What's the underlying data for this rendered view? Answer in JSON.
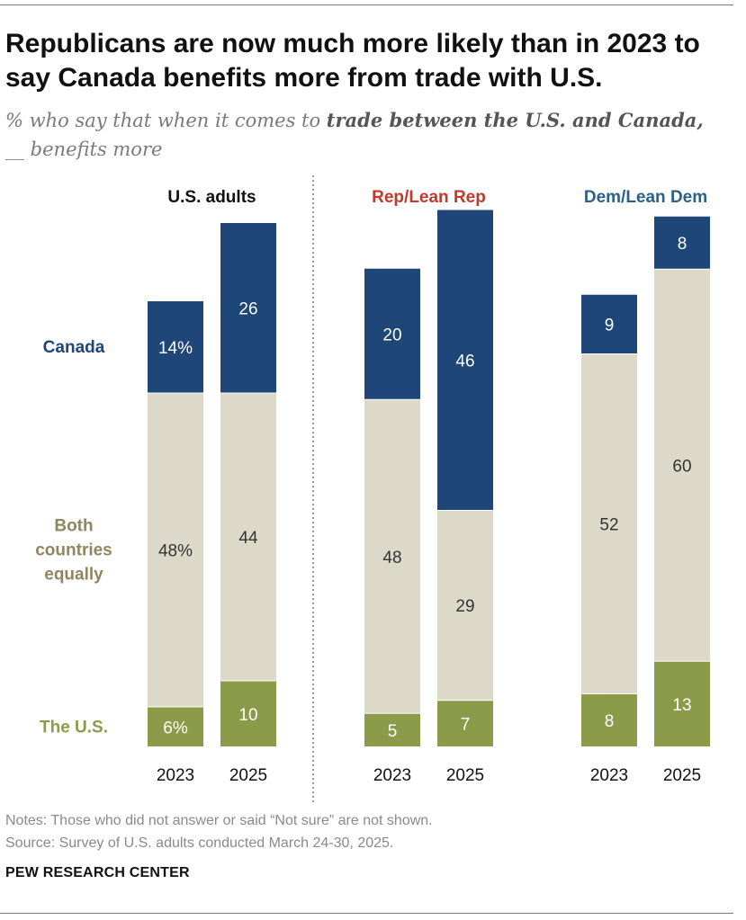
{
  "title": "Republicans are now much more likely than in 2023 to say Canada benefits more from trade with U.S.",
  "subtitle": {
    "prefix": "% who say that when it comes to ",
    "bold": "trade between the U.S. and Canada,",
    "suffix": "__ benefits more"
  },
  "chart_data": {
    "type": "bar",
    "stacked": true,
    "groups": [
      {
        "name": "U.S. adults",
        "color": "#111111",
        "years": [
          "2023",
          "2025"
        ],
        "values": {
          "The U.S.": [
            6,
            10
          ],
          "Both countries equally": [
            48,
            44
          ],
          "Canada": [
            14,
            26
          ]
        },
        "labels": {
          "The U.S.": [
            "6%",
            "10"
          ],
          "Both countries equally": [
            "48%",
            "44"
          ],
          "Canada": [
            "14%",
            "26"
          ]
        }
      },
      {
        "name": "Rep/Lean Rep",
        "color": "#bf3a2b",
        "years": [
          "2023",
          "2025"
        ],
        "values": {
          "The U.S.": [
            5,
            7
          ],
          "Both countries equally": [
            48,
            29
          ],
          "Canada": [
            20,
            46
          ]
        },
        "labels": {
          "The U.S.": [
            "5",
            "7"
          ],
          "Both countries equally": [
            "48",
            "29"
          ],
          "Canada": [
            "20",
            "46"
          ]
        }
      },
      {
        "name": "Dem/Lean Dem",
        "color": "#2c5f8a",
        "years": [
          "2023",
          "2025"
        ],
        "values": {
          "The U.S.": [
            8,
            13
          ],
          "Both countries equally": [
            52,
            60
          ],
          "Canada": [
            9,
            8
          ]
        },
        "labels": {
          "The U.S.": [
            "8",
            "13"
          ],
          "Both countries equally": [
            "52",
            "60"
          ],
          "Canada": [
            "9",
            "8"
          ]
        }
      }
    ],
    "categories": [
      {
        "name": "The U.S.",
        "label_lines": [
          "The U.S."
        ],
        "color": "#8c9b49",
        "label_color": "#8c9b49",
        "text_color": "#ffffff"
      },
      {
        "name": "Both countries equally",
        "label_lines": [
          "Both",
          "countries",
          "equally"
        ],
        "color": "#dcd9c9",
        "label_color": "#8f8660",
        "text_color": "#333333"
      },
      {
        "name": "Canada",
        "label_lines": [
          "Canada"
        ],
        "color": "#1f4678",
        "label_color": "#1f4678",
        "text_color": "#ffffff"
      }
    ]
  },
  "notes": "Notes: Those who did not answer or said “Not sure” are not shown.",
  "source": "Source: Survey of U.S. adults conducted March 24-30, 2025.",
  "org": "PEW RESEARCH CENTER"
}
